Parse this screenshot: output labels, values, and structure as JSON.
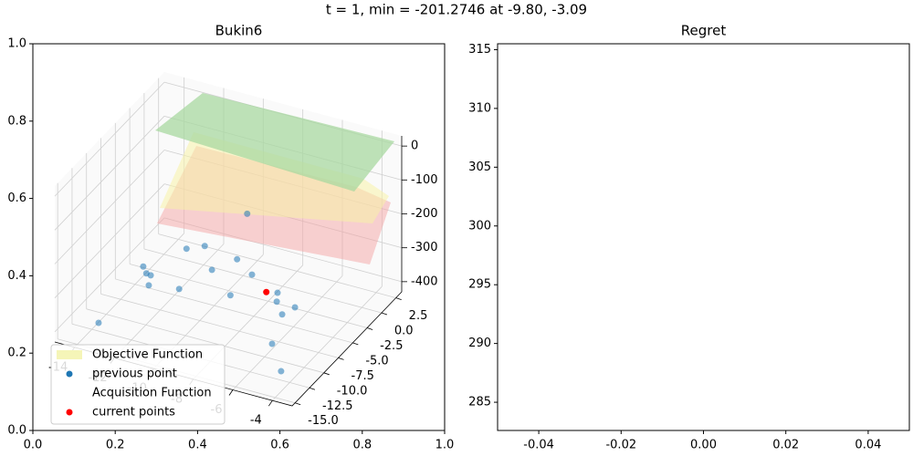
{
  "title": "t = 1, min = -201.2746 at -9.80, -3.09",
  "chart_data": [
    {
      "type": "scatter3d",
      "title": "Bukin6",
      "frame": {
        "xlim": [
          0,
          1
        ],
        "xticks": [
          {
            "value": 0,
            "label": "0.0"
          },
          {
            "value": 0.2,
            "label": "0.2"
          },
          {
            "value": 0.4,
            "label": "0.4"
          },
          {
            "value": 0.6,
            "label": "0.6"
          },
          {
            "value": 0.8,
            "label": "0.8"
          },
          {
            "value": 1,
            "label": "1.0"
          }
        ],
        "ylim": [
          0,
          1
        ],
        "yticks": [
          {
            "value": 0,
            "label": "0.0"
          },
          {
            "value": 0.2,
            "label": "0.2"
          },
          {
            "value": 0.4,
            "label": "0.4"
          },
          {
            "value": 0.6,
            "label": "0.6"
          },
          {
            "value": 0.8,
            "label": "0.8"
          },
          {
            "value": 1,
            "label": "1.0"
          }
        ]
      },
      "xlim": [
        -15,
        -3
      ],
      "xticks": [
        -14,
        -12,
        -10,
        -8,
        -6,
        -4
      ],
      "ylim": [
        -15.5,
        3.5
      ],
      "yticks": [
        2.5,
        {
          "value": 0,
          "label": "0.0"
        },
        -2.5,
        {
          "value": -5,
          "label": "-5.0"
        },
        -7.5,
        {
          "value": -10,
          "label": "-10.0"
        },
        -12.5,
        {
          "value": -15,
          "label": "-15.0"
        }
      ],
      "zlim": [
        -430,
        30
      ],
      "zticks": [
        0,
        -100,
        -200,
        -300,
        -400
      ],
      "surfaces": [
        {
          "name": "Objective Function",
          "color": "#f5f5b8"
        },
        {
          "name": "Acquisition Function"
        }
      ],
      "series": [
        {
          "name": "previous point",
          "color": "#1f77b4",
          "x": [
            -13.85,
            -13.28,
            -13.59,
            -13.84,
            -14.23,
            -11.92,
            -13.18,
            -12.55,
            -11.34,
            -9.62,
            -10.74,
            -9.55,
            -7.51,
            -7.82,
            -6.8,
            -6.56,
            -6.07,
            -4.65,
            -10.52
          ],
          "y": [
            -11.85,
            -5.1,
            -3.7,
            -3.6,
            -2.8,
            -4.5,
            1.1,
            2.1,
            -0.8,
            -3.5,
            1.5,
            0.0,
            -2.7,
            -1.5,
            -4.2,
            -2.8,
            -8.45,
            -11.76,
            2.5
          ],
          "z": [
            -420,
            -420,
            -420,
            -420,
            -420,
            -420,
            -420,
            -420,
            -420,
            -420,
            -420,
            -420,
            -420,
            -420,
            -420,
            -420,
            -420,
            -420,
            -300
          ]
        },
        {
          "name": "current points",
          "color": "red",
          "x": [
            -8.3
          ],
          "y": [
            -1.8
          ],
          "z": [
            -420
          ]
        }
      ]
    },
    {
      "type": "line",
      "title": "Regret",
      "xlim": [
        -0.05,
        0.05
      ],
      "xticks": [
        -0.04,
        -0.02,
        {
          "value": 0,
          "label": "0.00"
        },
        0.02,
        0.04
      ],
      "ylim": [
        282.6,
        315.5
      ],
      "yticks": [
        285,
        290,
        295,
        300,
        305,
        310,
        315
      ]
    }
  ]
}
